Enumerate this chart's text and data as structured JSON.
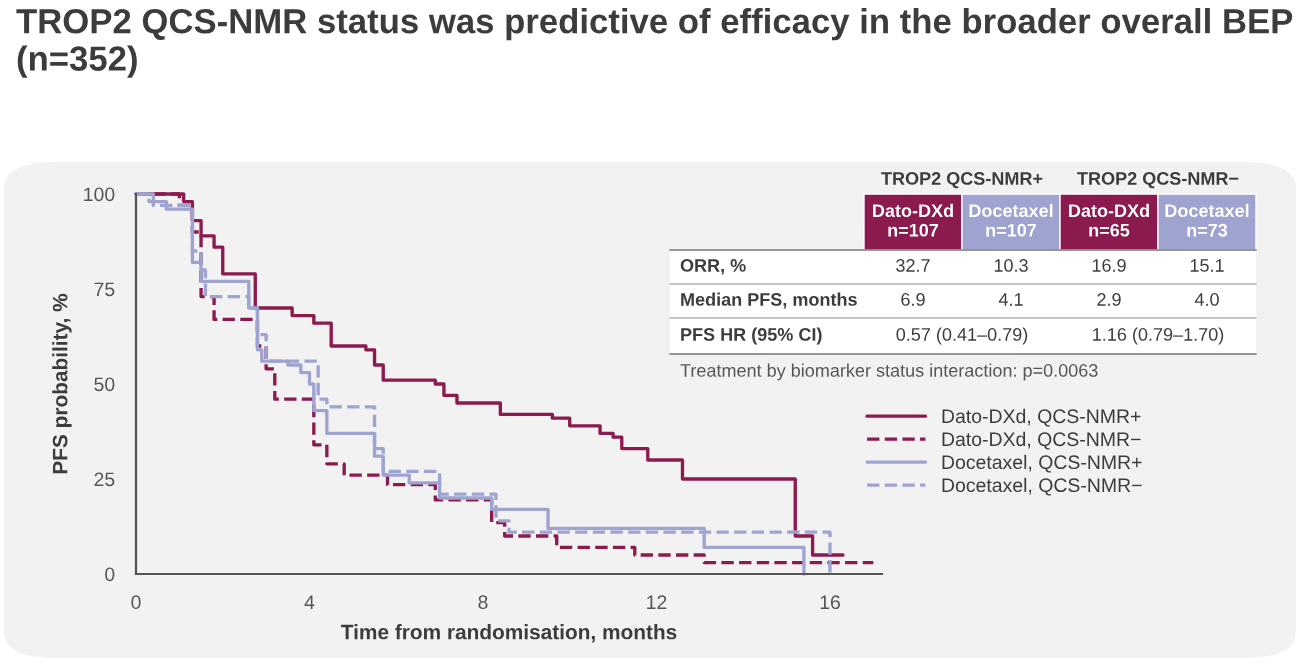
{
  "chart_data": [
    {
      "type": "step",
      "title": "TROP2 QCS-NMR status was predictive of efficacy in the broader overall BEP (n=352)",
      "xlabel": "Time from randomisation, months",
      "ylabel": "PFS probability, %",
      "xlim": [
        0,
        17.2
      ],
      "ylim": [
        0,
        100
      ],
      "xticks": [
        0,
        4,
        8,
        12,
        16
      ],
      "yticks": [
        0,
        25,
        50,
        75,
        100
      ],
      "grid": false,
      "legend": "right",
      "marker": "none",
      "series": [
        {
          "name": "Dato-DXd, QCS-NMR+",
          "color": "#8b1a4f",
          "line_style": "solid",
          "x": [
            0,
            1.1,
            1.3,
            1.5,
            1.8,
            2.0,
            2.75,
            3.6,
            4.1,
            4.5,
            5.3,
            5.5,
            5.7,
            6.9,
            7.1,
            7.4,
            8.2,
            8.4,
            9.6,
            10.0,
            10.7,
            11.0,
            11.2,
            11.8,
            12.6,
            15.2,
            15.6,
            16.3
          ],
          "values": [
            100,
            98,
            93,
            89,
            86,
            79,
            70,
            68,
            66,
            60,
            59,
            55,
            51,
            50,
            47,
            45,
            45,
            42,
            41,
            39,
            37,
            36,
            33,
            30,
            25,
            10,
            5,
            5
          ]
        },
        {
          "name": "Dato-DXd, QCS-NMR−",
          "color": "#8b1a4f",
          "line_style": "dashed",
          "x": [
            0,
            1.0,
            1.3,
            1.5,
            1.8,
            2.5,
            2.8,
            3.0,
            3.2,
            4.0,
            4.1,
            4.4,
            4.8,
            5.8,
            6.9,
            8.2,
            8.5,
            9.7,
            11.5,
            13.1,
            17.0
          ],
          "values": [
            100,
            97,
            90,
            73,
            67,
            67,
            60,
            54,
            46,
            46,
            34,
            29,
            26,
            23.5,
            19.5,
            13.5,
            10,
            7,
            5,
            3,
            3
          ]
        },
        {
          "name": "Docetaxel, QCS-NMR+",
          "color": "#9ea3d0",
          "line_style": "solid",
          "x": [
            0,
            0.4,
            0.7,
            1.3,
            1.5,
            2.6,
            2.8,
            2.9,
            3.5,
            3.8,
            4.0,
            4.1,
            4.4,
            5.3,
            5.5,
            5.7,
            6.3,
            7.0,
            8.2,
            9.5,
            13.1,
            15.4
          ],
          "values": [
            100,
            98,
            96,
            82,
            77,
            70,
            59,
            56,
            55,
            53,
            50,
            43,
            37,
            37,
            31,
            26,
            24,
            20,
            17,
            12,
            7,
            0
          ]
        },
        {
          "name": "Docetaxel, QCS-NMR−",
          "color": "#9ea3d0",
          "line_style": "dashed",
          "x": [
            0,
            0.3,
            0.4,
            1.3,
            1.5,
            1.6,
            2.6,
            2.8,
            3.0,
            3.8,
            4.2,
            4.4,
            5.3,
            5.5,
            5.7,
            7.0,
            8.3,
            8.6,
            16.0
          ],
          "values": [
            100,
            98,
            97,
            85,
            80,
            73,
            70,
            63,
            56,
            56,
            46,
            44,
            44,
            33,
            27,
            21,
            14,
            11,
            0
          ]
        }
      ]
    },
    {
      "type": "other",
      "annotations": [
        "TROP2 QCS-NMR+",
        "TROP2 QCS-NMR−",
        "Dato-DXd\nn=107",
        "Docetaxel\nn=107",
        "Dato-DXd\nn=65",
        "Docetaxel\nn=73",
        "ORR, %",
        "32.7",
        "10.3",
        "16.9",
        "15.1",
        "Median PFS, months",
        "6.9",
        "4.1",
        "2.9",
        "4.0",
        "PFS HR (95% CI)",
        "0.57 (0.41–0.79)",
        "1.16 (0.79–1.70)",
        "Treatment by biomarker status interaction: p=0.0063"
      ]
    }
  ]
}
